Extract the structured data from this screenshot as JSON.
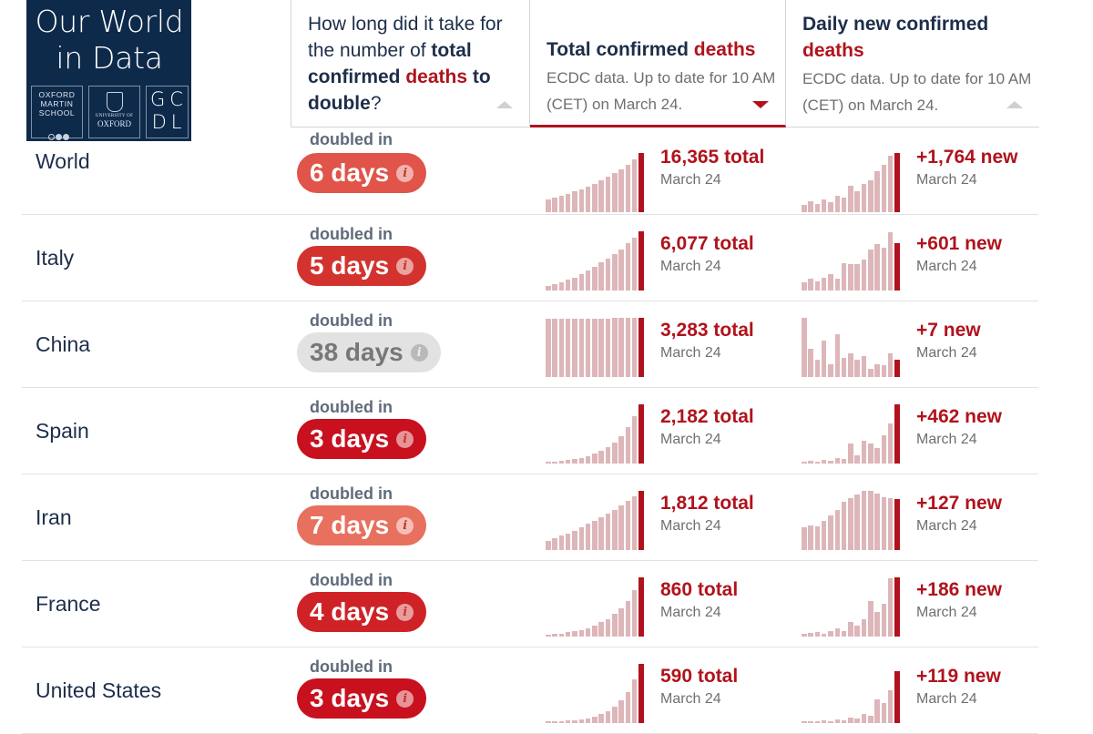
{
  "logo": {
    "title": "Our World\nin Data",
    "oms": "OXFORD\nMARTIN\nSCHOOL",
    "uo_small": "UNIVERSITY OF",
    "uo": "OXFORD",
    "gcdl": "GC\nDL"
  },
  "header": {
    "doubling": {
      "q1": "How long did it take for the number of ",
      "q2": "total confirmed",
      "q3": " ",
      "q4": "deaths",
      "q5": " to double",
      "q6": "?"
    },
    "total": {
      "title1": "Total confirmed ",
      "title2": "deaths",
      "src": "ECDC data. Up to date for 10 AM (CET) on March 24."
    },
    "daily": {
      "title1": "Daily new confirmed ",
      "title2": "deaths",
      "src": "ECDC data. Up to date for 10 AM (CET) on March 24."
    }
  },
  "colors": {
    "accent": "#b0131d",
    "bar_light": "#ddb6ba",
    "pill_6": "#e0544a",
    "pill_5": "#d3332e",
    "pill_38": "#e2e2e2",
    "pill_3": "#c8101e",
    "pill_7": "#e8705e",
    "pill_4": "#cf2226"
  },
  "rows": [
    {
      "country": "World",
      "doubled_label": "doubled in",
      "days": "6 days",
      "pill_color": "#e0544a",
      "gray": false,
      "total_label": "16,365 total",
      "total_date": "March 24",
      "new_label": "+1,764 new",
      "new_date": "March 24",
      "total_series": [
        0.22,
        0.25,
        0.28,
        0.31,
        0.35,
        0.39,
        0.43,
        0.48,
        0.54,
        0.6,
        0.66,
        0.72,
        0.8,
        0.89,
        1.0
      ],
      "new_series": [
        0.12,
        0.18,
        0.14,
        0.22,
        0.17,
        0.28,
        0.24,
        0.44,
        0.36,
        0.48,
        0.54,
        0.7,
        0.8,
        0.96,
        1.0
      ]
    },
    {
      "country": "Italy",
      "doubled_label": "doubled in",
      "days": "5 days",
      "pill_color": "#d3332e",
      "gray": false,
      "total_label": "6,077 total",
      "total_date": "March 24",
      "new_label": "+601 new",
      "new_date": "March 24",
      "total_series": [
        0.08,
        0.11,
        0.14,
        0.18,
        0.22,
        0.28,
        0.34,
        0.4,
        0.47,
        0.54,
        0.62,
        0.7,
        0.8,
        0.9,
        1.0
      ],
      "new_series": [
        0.14,
        0.2,
        0.16,
        0.22,
        0.28,
        0.2,
        0.46,
        0.44,
        0.44,
        0.52,
        0.7,
        0.78,
        0.72,
        0.98,
        0.8
      ]
    },
    {
      "country": "China",
      "doubled_label": "doubled in",
      "days": "38 days",
      "pill_color": "#e2e2e2",
      "gray": true,
      "total_label": "3,283 total",
      "total_date": "March 24",
      "new_label": "+7 new",
      "new_date": "March 24",
      "total_series": [
        0.98,
        0.98,
        0.98,
        0.99,
        0.99,
        0.99,
        0.99,
        0.99,
        0.99,
        0.99,
        1.0,
        1.0,
        1.0,
        1.0,
        1.0
      ],
      "new_series": [
        1.0,
        0.48,
        0.3,
        0.62,
        0.22,
        0.72,
        0.32,
        0.4,
        0.3,
        0.36,
        0.14,
        0.22,
        0.2,
        0.4,
        0.3
      ]
    },
    {
      "country": "Spain",
      "doubled_label": "doubled in",
      "days": "3 days",
      "pill_color": "#c8101e",
      "gray": false,
      "total_label": "2,182 total",
      "total_date": "March 24",
      "new_label": "+462 new",
      "new_date": "March 24",
      "total_series": [
        0.02,
        0.03,
        0.04,
        0.06,
        0.08,
        0.1,
        0.13,
        0.17,
        0.22,
        0.28,
        0.36,
        0.46,
        0.62,
        0.8,
        1.0
      ],
      "new_series": [
        0.02,
        0.04,
        0.02,
        0.06,
        0.04,
        0.1,
        0.08,
        0.34,
        0.14,
        0.38,
        0.34,
        0.26,
        0.48,
        0.68,
        1.0
      ]
    },
    {
      "country": "Iran",
      "doubled_label": "doubled in",
      "days": "7 days",
      "pill_color": "#e8705e",
      "gray": false,
      "total_label": "1,812 total",
      "total_date": "March 24",
      "new_label": "+127 new",
      "new_date": "March 24",
      "total_series": [
        0.16,
        0.2,
        0.24,
        0.28,
        0.33,
        0.38,
        0.44,
        0.5,
        0.56,
        0.62,
        0.68,
        0.75,
        0.83,
        0.91,
        1.0
      ],
      "new_series": [
        0.38,
        0.42,
        0.4,
        0.5,
        0.58,
        0.68,
        0.82,
        0.88,
        0.94,
        1.0,
        1.0,
        0.96,
        0.9,
        0.88,
        0.86
      ]
    },
    {
      "country": "France",
      "doubled_label": "doubled in",
      "days": "4 days",
      "pill_color": "#cf2226",
      "gray": false,
      "total_label": "860 total",
      "total_date": "March 24",
      "new_label": "+186 new",
      "new_date": "March 24",
      "total_series": [
        0.03,
        0.04,
        0.05,
        0.07,
        0.09,
        0.11,
        0.14,
        0.18,
        0.24,
        0.3,
        0.38,
        0.48,
        0.6,
        0.78,
        1.0
      ],
      "new_series": [
        0.04,
        0.06,
        0.08,
        0.05,
        0.1,
        0.14,
        0.1,
        0.24,
        0.18,
        0.3,
        0.6,
        0.42,
        0.56,
        0.98,
        1.0
      ]
    },
    {
      "country": "United States",
      "doubled_label": "doubled in",
      "days": "3 days",
      "pill_color": "#c8101e",
      "gray": false,
      "total_label": "590 total",
      "total_date": "March 24",
      "new_label": "+119 new",
      "new_date": "March 24",
      "total_series": [
        0.02,
        0.02,
        0.03,
        0.04,
        0.05,
        0.06,
        0.08,
        0.11,
        0.15,
        0.2,
        0.28,
        0.38,
        0.52,
        0.74,
        1.0
      ],
      "new_series": [
        0.02,
        0.03,
        0.02,
        0.04,
        0.03,
        0.06,
        0.04,
        0.1,
        0.08,
        0.16,
        0.12,
        0.4,
        0.34,
        0.56,
        0.88
      ]
    }
  ]
}
